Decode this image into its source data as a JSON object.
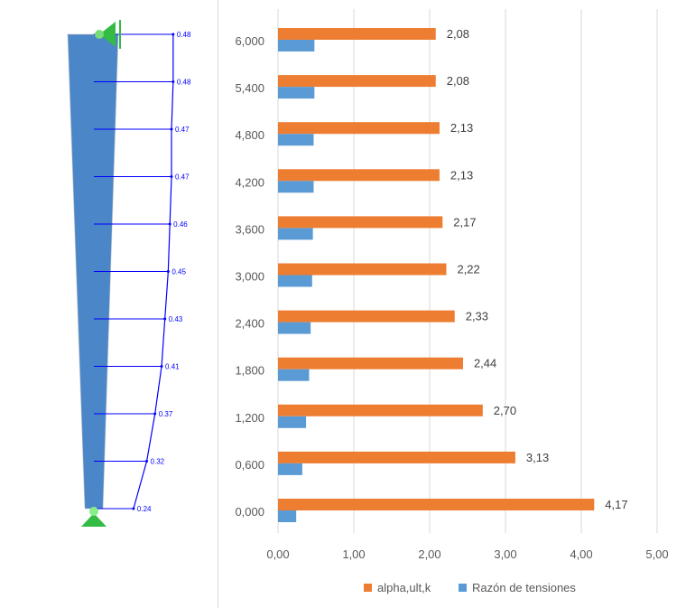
{
  "diagram": {
    "stations": [
      6.0,
      5.4,
      4.8,
      4.2,
      3.6,
      3.0,
      2.4,
      1.8,
      1.2,
      0.6,
      0.0
    ],
    "values": [
      "0.48",
      "0.48",
      "0.47",
      "0.47",
      "0.46",
      "0.45",
      "0.43",
      "0.41",
      "0.37",
      "0.32",
      "0.24"
    ],
    "member_color": "#4a86c8",
    "line_color": "#0000ff",
    "support_color": "#33bb44"
  },
  "chart_data": {
    "type": "bar",
    "orientation": "horizontal",
    "categories": [
      "0,000",
      "0,600",
      "1,200",
      "1,800",
      "2,400",
      "3,000",
      "3,600",
      "4,200",
      "4,800",
      "5,400",
      "6,000"
    ],
    "series": [
      {
        "name": "alpha,ult,k",
        "color": "#ed7d31",
        "values": [
          4.17,
          3.13,
          2.7,
          2.44,
          2.33,
          2.22,
          2.17,
          2.13,
          2.13,
          2.08,
          2.08
        ],
        "labels": [
          "4,17",
          "3,13",
          "2,70",
          "2,44",
          "2,33",
          "2,22",
          "2,17",
          "2,13",
          "2,13",
          "2,08",
          "2,08"
        ]
      },
      {
        "name": "Razón de tensiones",
        "color": "#5b9bd5",
        "values": [
          0.24,
          0.32,
          0.37,
          0.41,
          0.43,
          0.45,
          0.46,
          0.47,
          0.47,
          0.48,
          0.48
        ]
      }
    ],
    "xlim": [
      0,
      5
    ],
    "xticks": [
      "0,00",
      "1,00",
      "2,00",
      "3,00",
      "4,00",
      "5,00"
    ],
    "grid": true,
    "legend": "bottom"
  }
}
